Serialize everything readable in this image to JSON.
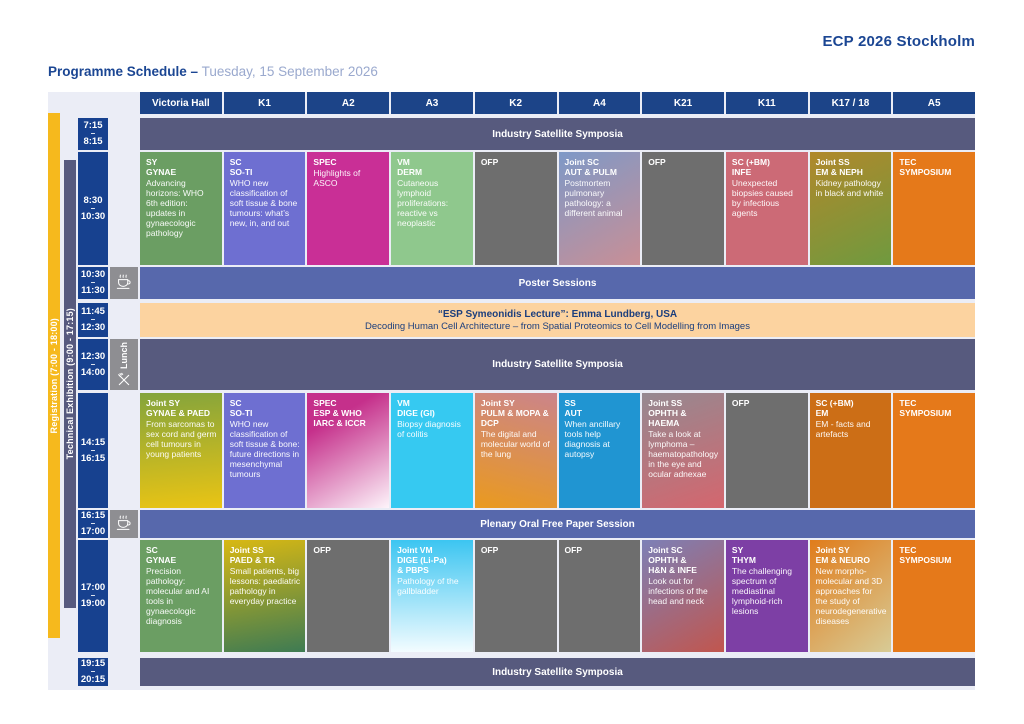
{
  "page": {
    "brand": "ECP 2026 Stockholm",
    "title": "Programme Schedule –",
    "title_date": " Tuesday, 15 September 2026",
    "time_sep": "–"
  },
  "sidebars": {
    "registration": "Registration (7:00 - 18:00)",
    "exhibition": "Technical Exhibition (9:00 - 17:15)"
  },
  "colors": {
    "registration_bar": "#f6b91d",
    "exhibition_bar": "#575a7e",
    "header_bg": "#1c4488",
    "time_bg": "#17418f",
    "banner_dark": "#575a7e",
    "banner_blue": "#5768ac",
    "banner_peach": "#fcd3a0",
    "icon_cell": "#8e8e92"
  },
  "columns": [
    "Victoria Hall",
    "K1",
    "A2",
    "A3",
    "K2",
    "A4",
    "K21",
    "K11",
    "K17 / 18",
    "A5"
  ],
  "icons": {
    "coffee": "coffee-cup",
    "lunch": "crossed-cutlery",
    "lunch_label": "Lunch"
  },
  "rows": {
    "r1": {
      "start": "7:15",
      "end": "8:15",
      "banner": "Industry Satellite Symposia"
    },
    "r2": {
      "start": "8:30",
      "end": "10:30",
      "cells": [
        {
          "t1": "SY",
          "t2": "GYNAE",
          "desc": "Advancing horizons: WHO 6th edition: updates in gynaecologic pathology",
          "bg": "#6b9e63"
        },
        {
          "t1": "SC",
          "t2": "SO-TI",
          "desc": "WHO new classification of soft tissue & bone tumours: what’s new, in, and out",
          "bg": "#6e6fd1"
        },
        {
          "t1": "SPEC",
          "desc": "Highlights of ASCO",
          "bg": "#c92f96"
        },
        {
          "t1": "VM",
          "t2": "DERM",
          "desc": "Cutaneous lymphoid proliferations: reactive vs neoplastic",
          "bg": "#8fc88d"
        },
        {
          "t1": "OFP",
          "bg": "#6e6e6e"
        },
        {
          "t1": "Joint SC",
          "t2": "AUT & PULM",
          "desc": "Postmortem pulmonary pathology: a different animal",
          "bg": "linear-gradient(150deg,#7e99c7,#c98f96)"
        },
        {
          "t1": "OFP",
          "bg": "#6e6e6e"
        },
        {
          "t1": "SC (+BM)",
          "t2": "INFE",
          "desc": "Unexpected biopsies caused by infectious agents",
          "bg": "#cc6a76"
        },
        {
          "t1": "Joint SS",
          "t2": "EM & NEPH",
          "desc": "Kidney pathology in black and white",
          "bg": "linear-gradient(155deg,#b0882b,#6f9a3f)"
        },
        {
          "t1": "TEC",
          "t2": "SYMPOSIUM",
          "bg": "#e5791a"
        }
      ]
    },
    "r3": {
      "start": "10:30",
      "end": "11:30",
      "banner": "Poster Sessions"
    },
    "r4": {
      "start": "11:45",
      "end": "12:30",
      "banner_line1": "“ESP Symeonidis Lecture”: Emma Lundberg, USA",
      "banner_line2": "Decoding Human Cell Architecture – from Spatial Proteomics to Cell Modelling from Images"
    },
    "r5": {
      "start": "12:30",
      "end": "14:00",
      "banner": "Industry Satellite Symposia"
    },
    "r6": {
      "start": "14:15",
      "end": "16:15",
      "cells": [
        {
          "t1": "Joint SY",
          "t2": "GYNAE & PAED",
          "desc": "From sarcomas to sex cord and germ cell tumours in young patients",
          "bg": "linear-gradient(175deg,#84a43c,#eac414)"
        },
        {
          "t1": "SC",
          "t2": "SO-TI",
          "desc": "WHO new classification of soft tissue & bone: future directions in mesenchymal tumours",
          "bg": "#6e6fd1"
        },
        {
          "t1": "SPEC",
          "t2": "ESP & WHO",
          "t3": "IARC & ICCR",
          "bg": "linear-gradient(150deg,#c5308b 25%,#fdf4fa)"
        },
        {
          "t1": "VM",
          "t2": "DIGE (GI)",
          "desc": "Biopsy diagnosis of colitis",
          "bg": "#36c9f1"
        },
        {
          "t1": "Joint SY",
          "t2": "PULM & MOPA & DCP",
          "desc": "The digital and molecular world of the lung",
          "bg": "linear-gradient(195deg,#cb848b,#ea9a1e)"
        },
        {
          "t1": "SS",
          "t2": "AUT",
          "desc": "When ancillary tools help diagnosis at autopsy",
          "bg": "#2095d2"
        },
        {
          "t1": "Joint SS",
          "t2": "OPHTH & HAEMA",
          "desc": "Take a look at lymphoma – haematopathology in the eye and ocular adnexae",
          "bg": "linear-gradient(160deg,#958991,#d4666e)"
        },
        {
          "t1": "OFP",
          "bg": "#6e6e6e"
        },
        {
          "t1": "SC (+BM)",
          "t2": "EM",
          "desc": "EM - facts and artefacts",
          "bg": "#cc6e16"
        },
        {
          "t1": "TEC",
          "t2": "SYMPOSIUM",
          "bg": "#e5791a"
        }
      ]
    },
    "r7": {
      "start": "16:15",
      "end": "17:00",
      "banner": "Plenary Oral Free Paper Session"
    },
    "r8": {
      "start": "17:00",
      "end": "19:00",
      "cells": [
        {
          "t1": "SC",
          "t2": "GYNAE",
          "desc": "Precision pathology: molecular and AI tools in gynaecologic diagnosis",
          "bg": "#6b9e63"
        },
        {
          "t1": "Joint SS",
          "t2": "PAED & TR",
          "desc": "Small patients, big lessons: paediatric pathology in everyday practice",
          "bg": "linear-gradient(170deg,#d8b813,#3e7b53)"
        },
        {
          "t1": "OFP",
          "bg": "#6e6e6e"
        },
        {
          "t1": "Joint VM",
          "t2": "DIGE (Li-Pa)",
          "t3": "& PBPS",
          "desc": "Pathology of the gallbladder",
          "bg": "linear-gradient(180deg,#3cc5f1,#f3fcff)"
        },
        {
          "t1": "OFP",
          "bg": "#6e6e6e"
        },
        {
          "t1": "OFP",
          "bg": "#6e6e6e"
        },
        {
          "t1": "Joint SC",
          "t2": "OPHTH &",
          "t3": "H&N & INFE",
          "desc": "Look out for infections of the head and neck",
          "bg": "linear-gradient(150deg,#7c80b7,#c1564e)"
        },
        {
          "t1": "SY",
          "t2": "THYM",
          "desc": "The challenging spectrum of mediastinal lymphoid-rich lesions",
          "bg": "#7d3fa5"
        },
        {
          "t1": "Joint SY",
          "t2": "EM & NEURO",
          "desc": "New morpho-molecular and 3D approaches for the study of neurodegenerative diseases",
          "bg": "linear-gradient(140deg,#e07c1b,#d8cb96)"
        },
        {
          "t1": "TEC",
          "t2": "SYMPOSIUM",
          "bg": "#e5791a"
        }
      ]
    },
    "r9": {
      "start": "19:15",
      "end": "20:15",
      "banner": "Industry Satellite Symposia"
    }
  }
}
